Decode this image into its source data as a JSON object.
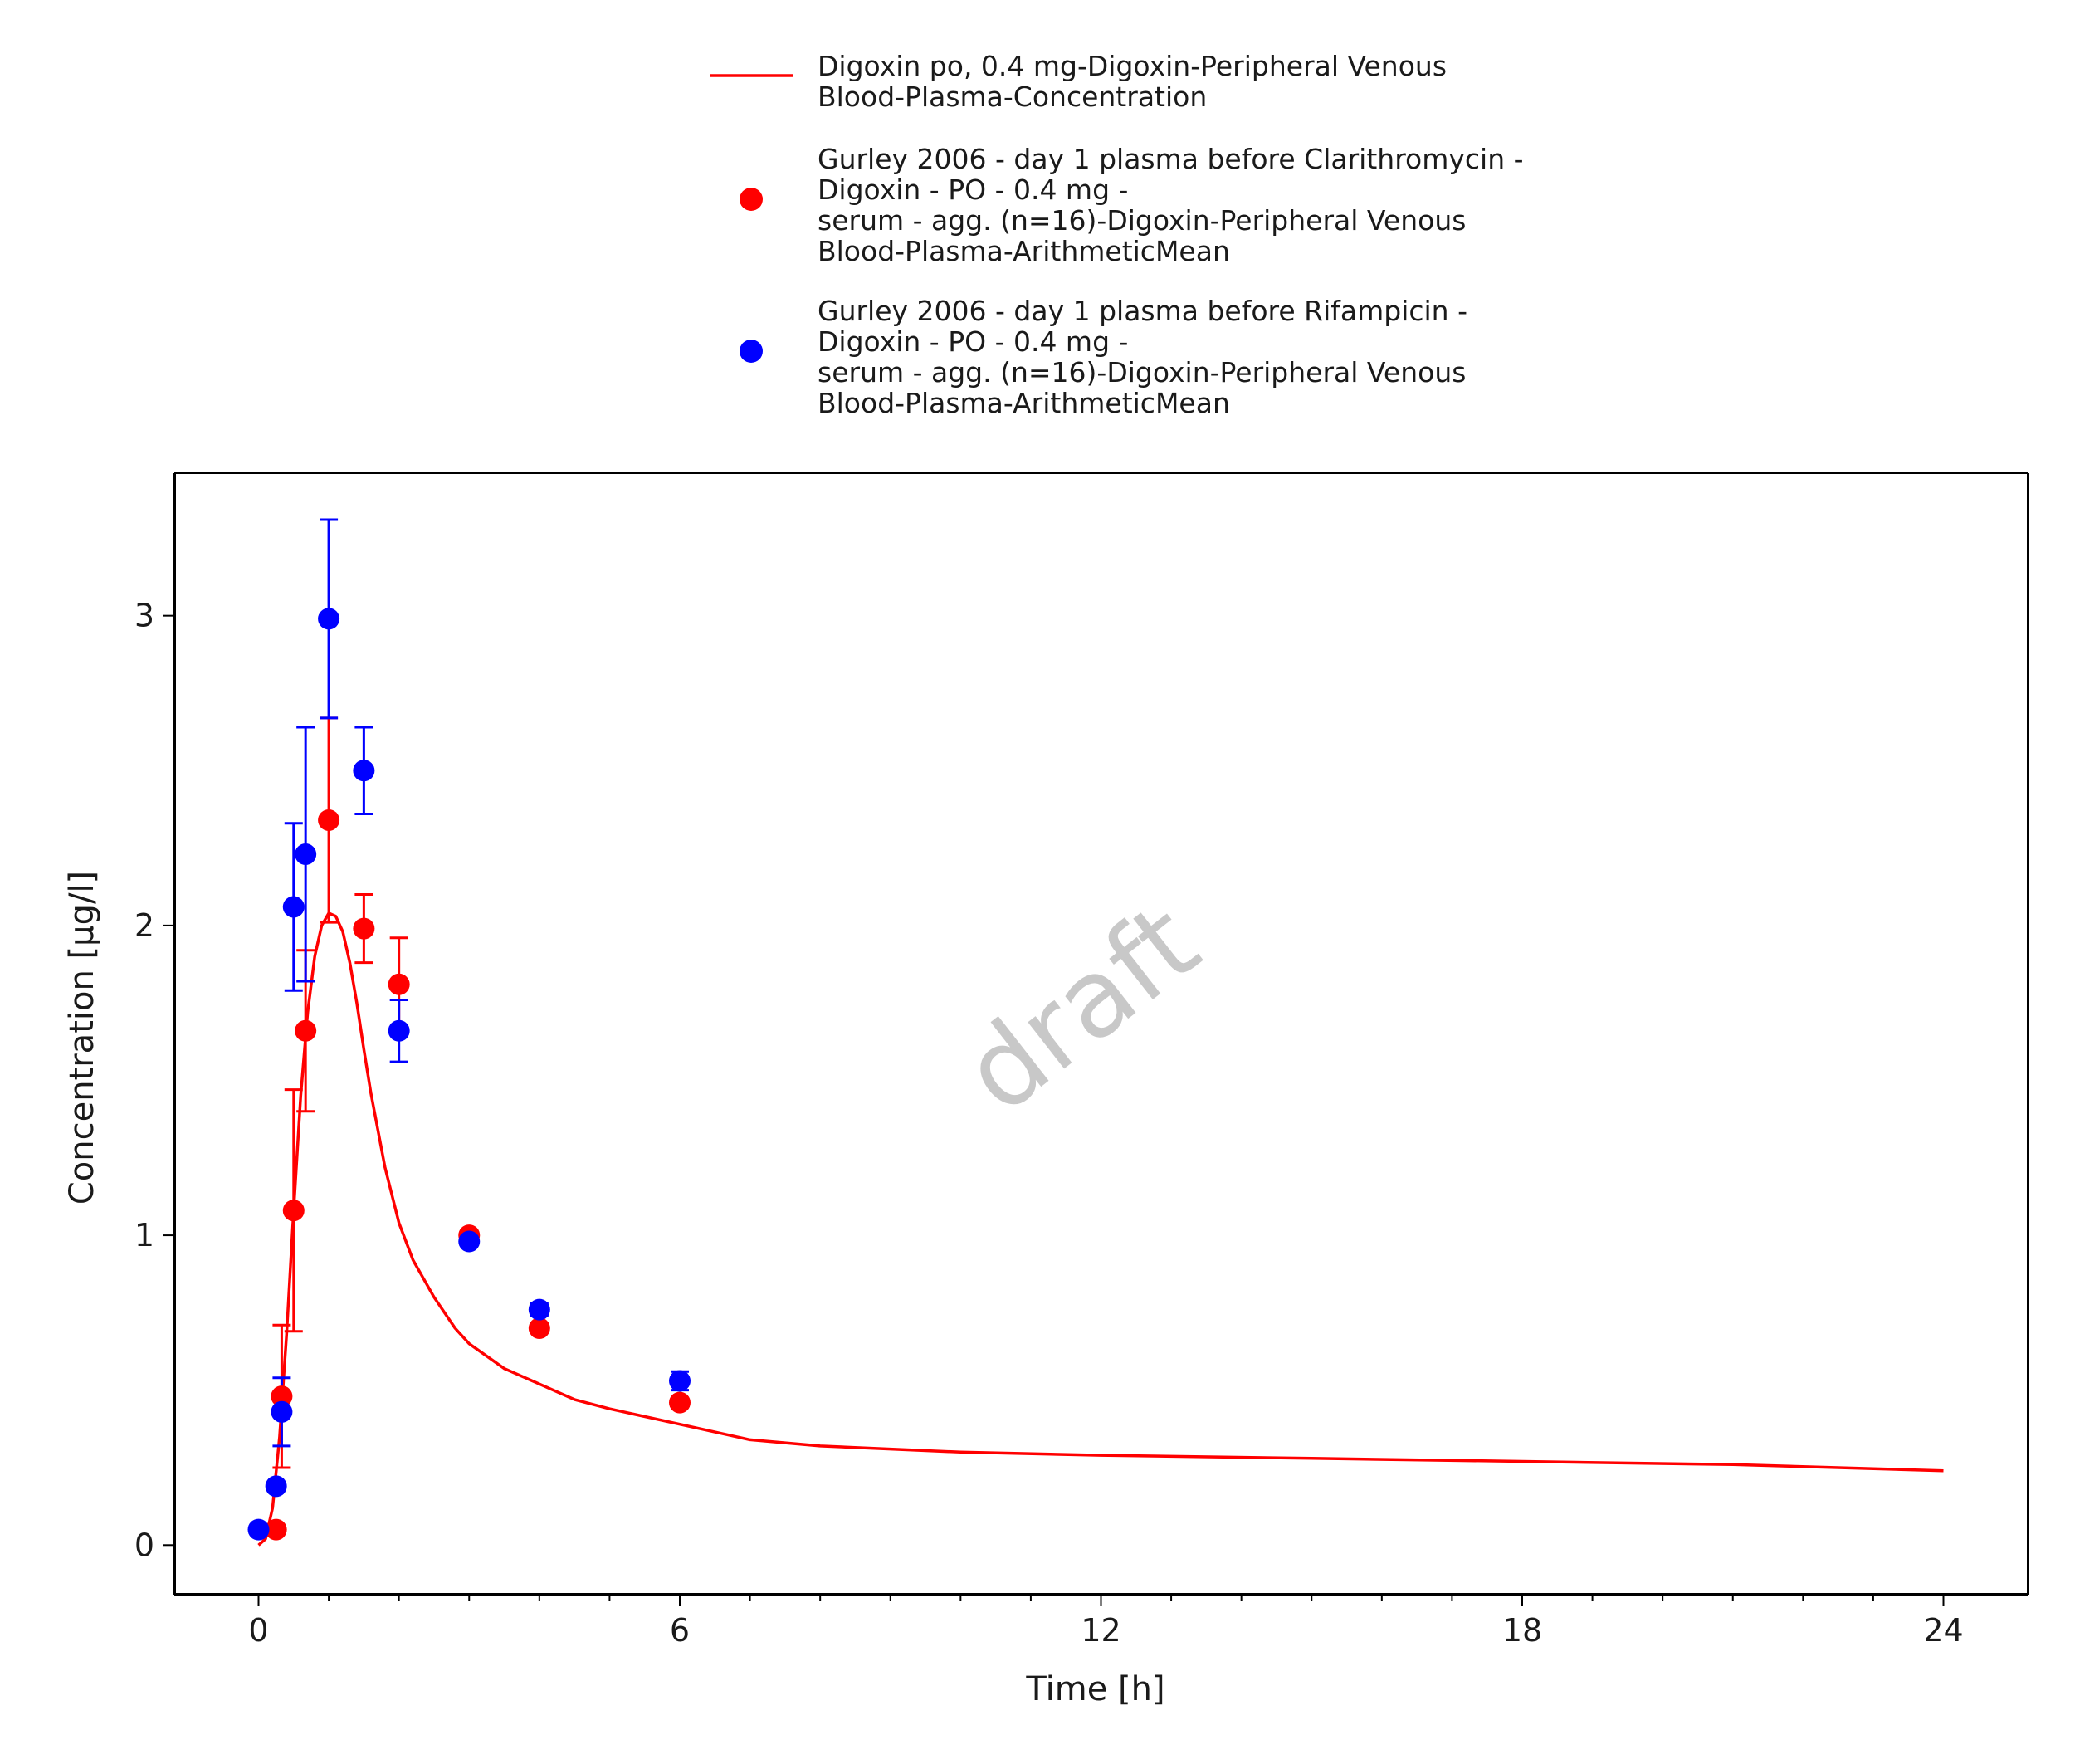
{
  "chart_data": {
    "type": "scatter",
    "xlabel": "Time [h]",
    "ylabel": "Concentration [µg/l]",
    "xlim": [
      -1.2,
      25.2
    ],
    "ylim": [
      -0.16,
      3.46
    ],
    "x_ticks": [
      0,
      6,
      12,
      18,
      24
    ],
    "x_minor_ticks": [
      1,
      2,
      3,
      4,
      5,
      7,
      8,
      9,
      10,
      11,
      13,
      14,
      15,
      16,
      17,
      19,
      20,
      21,
      22,
      23
    ],
    "y_ticks": [
      0,
      1,
      2,
      3
    ],
    "grid": false,
    "legend_position": "top",
    "watermark": "draft",
    "series": [
      {
        "name": "Digoxin po, 0.4 mg-Digoxin-Peripheral Venous Blood-Plasma-Concentration",
        "legend_lines": [
          "Digoxin po, 0.4 mg-Digoxin-Peripheral Venous",
          "Blood-Plasma-Concentration"
        ],
        "kind": "line",
        "color": "#ff0000",
        "x": [
          0,
          0.1,
          0.2,
          0.3,
          0.4,
          0.5,
          0.6,
          0.7,
          0.8,
          0.9,
          1.0,
          1.1,
          1.2,
          1.3,
          1.4,
          1.5,
          1.6,
          1.8,
          2.0,
          2.2,
          2.5,
          2.8,
          3.0,
          3.5,
          4.0,
          4.5,
          5.0,
          6.0,
          7.0,
          8.0,
          10.0,
          12.0,
          15.0,
          18.0,
          21.0,
          24.0
        ],
        "y": [
          0.0,
          0.02,
          0.12,
          0.35,
          0.68,
          1.08,
          1.45,
          1.72,
          1.9,
          2.0,
          2.04,
          2.03,
          1.98,
          1.88,
          1.75,
          1.6,
          1.46,
          1.22,
          1.04,
          0.92,
          0.8,
          0.7,
          0.65,
          0.57,
          0.52,
          0.47,
          0.44,
          0.39,
          0.34,
          0.32,
          0.3,
          0.29,
          0.28,
          0.27,
          0.26,
          0.24
        ]
      },
      {
        "name": "Gurley 2006 - day 1 plasma before Clarithromycin - Digoxin - PO - 0.4 mg - serum - agg. (n=16)-Digoxin-Peripheral Venous Blood-Plasma-ArithmeticMean",
        "legend_lines": [
          "Gurley 2006 - day 1 plasma before Clarithromycin -",
          "Digoxin - PO - 0.4 mg -",
          "serum - agg. (n=16)-Digoxin-Peripheral Venous",
          "Blood-Plasma-ArithmeticMean"
        ],
        "kind": "points",
        "color": "#ff0000",
        "x": [
          0.25,
          0.33,
          0.5,
          0.67,
          1.0,
          1.5,
          2.0,
          3.0,
          4.0,
          6.0
        ],
        "y": [
          0.05,
          0.48,
          1.08,
          1.66,
          2.34,
          1.99,
          1.81,
          1.0,
          0.7,
          0.46
        ],
        "y_err": [
          0.0,
          0.23,
          0.39,
          0.26,
          0.33,
          0.11,
          0.15,
          0.0,
          0.0,
          0.0
        ]
      },
      {
        "name": "Gurley 2006 - day 1 plasma before Rifampicin - Digoxin - PO - 0.4 mg - serum - agg. (n=16)-Digoxin-Peripheral Venous Blood-Plasma-ArithmeticMean",
        "legend_lines": [
          "Gurley 2006 - day 1 plasma before Rifampicin -",
          "Digoxin - PO - 0.4 mg -",
          "serum - agg. (n=16)-Digoxin-Peripheral Venous",
          "Blood-Plasma-ArithmeticMean"
        ],
        "kind": "points",
        "color": "#0000ff",
        "x": [
          0.0,
          0.25,
          0.33,
          0.5,
          0.67,
          1.0,
          1.5,
          2.0,
          3.0,
          4.0,
          6.0
        ],
        "y": [
          0.05,
          0.19,
          0.43,
          2.06,
          2.23,
          2.99,
          2.5,
          1.66,
          0.98,
          0.76,
          0.53
        ],
        "y_err": [
          0.0,
          0.0,
          0.11,
          0.27,
          0.41,
          0.32,
          0.14,
          0.1,
          0.0,
          0.02,
          0.03
        ]
      }
    ]
  }
}
